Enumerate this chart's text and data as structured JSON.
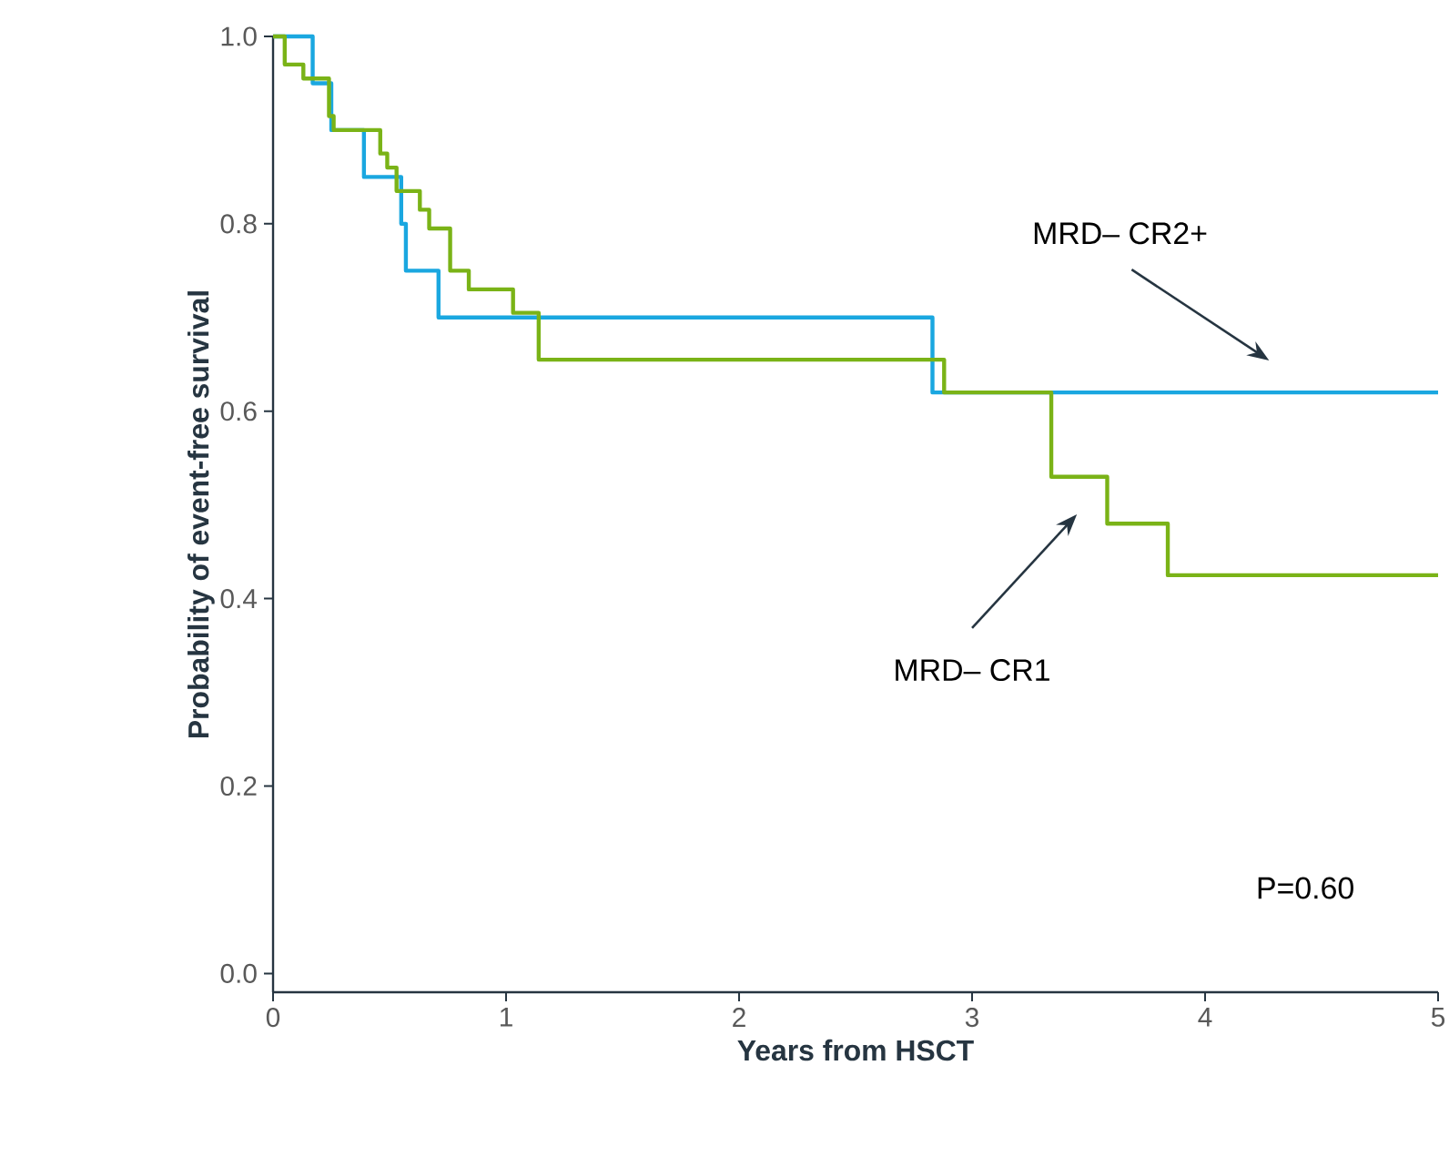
{
  "chart_data": {
    "type": "step",
    "xlabel": "Years from HSCT",
    "ylabel": "Probability of event-free survival",
    "xlim": [
      0,
      5
    ],
    "ylim": [
      -0.02,
      1.0
    ],
    "xticks": [
      0,
      1,
      2,
      3,
      4,
      5
    ],
    "yticks": [
      {
        "value": 0,
        "label": "0.0"
      },
      {
        "value": 0.2,
        "label": "0.2"
      },
      {
        "value": 0.4,
        "label": "0.4"
      },
      {
        "value": 0.6,
        "label": "0.6"
      },
      {
        "value": 0.8,
        "label": "0.8"
      },
      {
        "value": 1,
        "label": "1.0"
      }
    ],
    "grid": false,
    "marker": "none",
    "line_style": "solid",
    "series": [
      {
        "color": "#1aa7e0",
        "x": [
          0,
          0.17,
          0.25,
          0.39,
          0.55,
          0.57,
          0.71,
          2.83,
          5
        ],
        "values": [
          1.0,
          0.95,
          0.9,
          0.85,
          0.8,
          0.75,
          0.7,
          0.62,
          0.62
        ]
      },
      {
        "color": "#7ab317",
        "x": [
          0,
          0.05,
          0.13,
          0.24,
          0.26,
          0.46,
          0.49,
          0.53,
          0.63,
          0.67,
          0.76,
          0.84,
          1.03,
          1.14,
          2.88,
          3.34,
          3.58,
          3.84,
          5
        ],
        "values": [
          1.0,
          0.97,
          0.955,
          0.915,
          0.9,
          0.875,
          0.86,
          0.835,
          0.815,
          0.795,
          0.75,
          0.73,
          0.705,
          0.655,
          0.62,
          0.53,
          0.48,
          0.425,
          0.425
        ]
      }
    ],
    "annotations": [
      "MRD– CR2+",
      "MRD– CR1",
      "P=0.60"
    ]
  }
}
